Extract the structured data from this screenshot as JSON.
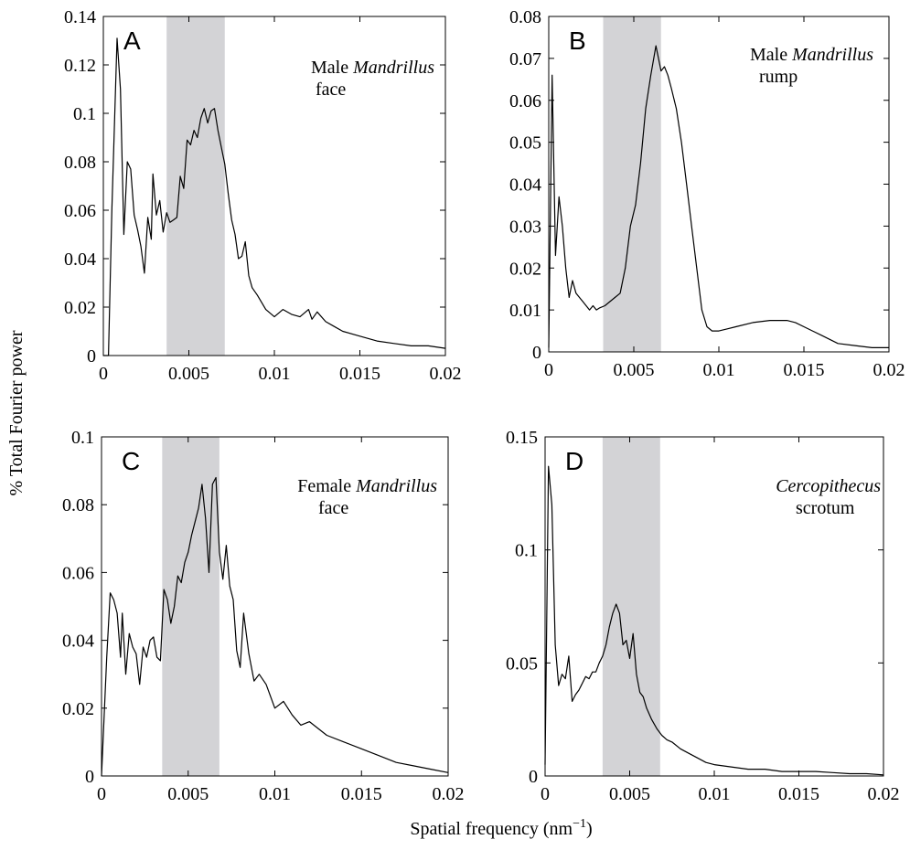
{
  "figure": {
    "ylabel": "%  Total Fourier power",
    "xlabel": "Spatial frequency (nm",
    "xlabel_exp": "−1",
    "xlabel_close": ")"
  },
  "chart_data": [
    {
      "type": "line",
      "panel": "A",
      "annotation": [
        {
          "text": "Male ",
          "italic": "Mandrillus"
        },
        {
          "text": "face"
        }
      ],
      "xlim": [
        0,
        0.02
      ],
      "ylim": [
        0,
        0.14
      ],
      "xticks": [
        0,
        0.005,
        0.01,
        0.015,
        0.02
      ],
      "xtick_labels": [
        "0",
        "0.005",
        "0.01",
        "0.015",
        "0.02"
      ],
      "yticks": [
        0,
        0.02,
        0.04,
        0.06,
        0.08,
        0.1,
        0.12,
        0.14
      ],
      "ytick_labels": [
        "0",
        "0.02",
        "0.04",
        "0.06",
        "0.08",
        "0.1",
        "0.12",
        "0.14"
      ],
      "shaded_band": [
        0.0037,
        0.0071
      ],
      "x": [
        0,
        0.0003,
        0.0005,
        0.0008,
        0.001,
        0.0012,
        0.0014,
        0.0016,
        0.0018,
        0.002,
        0.0022,
        0.0024,
        0.0026,
        0.0028,
        0.0029,
        0.0031,
        0.0033,
        0.0035,
        0.0037,
        0.0039,
        0.0041,
        0.0043,
        0.0045,
        0.0047,
        0.0049,
        0.0051,
        0.0053,
        0.0055,
        0.0057,
        0.0059,
        0.0061,
        0.0063,
        0.0065,
        0.0067,
        0.0069,
        0.0071,
        0.0073,
        0.0075,
        0.0077,
        0.0079,
        0.0081,
        0.0083,
        0.0085,
        0.0087,
        0.009,
        0.0095,
        0.01,
        0.0105,
        0.011,
        0.0115,
        0.012,
        0.0122,
        0.0125,
        0.013,
        0.0135,
        0.014,
        0.015,
        0.016,
        0.017,
        0.018,
        0.019,
        0.02
      ],
      "values": [
        0,
        0,
        0.06,
        0.131,
        0.11,
        0.05,
        0.08,
        0.077,
        0.058,
        0.052,
        0.045,
        0.034,
        0.057,
        0.048,
        0.075,
        0.058,
        0.064,
        0.051,
        0.059,
        0.055,
        0.056,
        0.057,
        0.074,
        0.069,
        0.089,
        0.087,
        0.093,
        0.09,
        0.098,
        0.102,
        0.096,
        0.101,
        0.102,
        0.093,
        0.086,
        0.079,
        0.067,
        0.056,
        0.05,
        0.04,
        0.041,
        0.047,
        0.033,
        0.028,
        0.025,
        0.019,
        0.016,
        0.019,
        0.017,
        0.016,
        0.019,
        0.015,
        0.018,
        0.014,
        0.012,
        0.01,
        0.008,
        0.006,
        0.005,
        0.004,
        0.004,
        0.003
      ]
    },
    {
      "type": "line",
      "panel": "B",
      "annotation": [
        {
          "text": "Male ",
          "italic": "Mandrillus"
        },
        {
          "text": "rump"
        }
      ],
      "xlim": [
        0,
        0.02
      ],
      "ylim": [
        0,
        0.08
      ],
      "xticks": [
        0,
        0.005,
        0.01,
        0.015,
        0.02
      ],
      "xtick_labels": [
        "0",
        "0.005",
        "0.01",
        "0.015",
        "0.02"
      ],
      "yticks": [
        0,
        0.01,
        0.02,
        0.03,
        0.04,
        0.05,
        0.06,
        0.07,
        0.08
      ],
      "ytick_labels": [
        "0",
        "0.01",
        "0.02",
        "0.03",
        "0.04",
        "0.05",
        "0.06",
        "0.07",
        "0.08"
      ],
      "shaded_band": [
        0.0032,
        0.0066
      ],
      "x": [
        0,
        0.0002,
        0.0004,
        0.0006,
        0.0008,
        0.001,
        0.0012,
        0.0014,
        0.0016,
        0.0018,
        0.002,
        0.0022,
        0.0024,
        0.0026,
        0.0028,
        0.003,
        0.0033,
        0.0036,
        0.0039,
        0.0042,
        0.0045,
        0.0048,
        0.0051,
        0.0054,
        0.0057,
        0.006,
        0.0063,
        0.0066,
        0.0068,
        0.007,
        0.0072,
        0.0075,
        0.0078,
        0.0081,
        0.0084,
        0.0087,
        0.009,
        0.0093,
        0.0096,
        0.01,
        0.0105,
        0.011,
        0.012,
        0.013,
        0.014,
        0.0145,
        0.015,
        0.016,
        0.017,
        0.018,
        0.019,
        0.02
      ],
      "values": [
        0.001,
        0.066,
        0.023,
        0.037,
        0.03,
        0.02,
        0.013,
        0.017,
        0.014,
        0.013,
        0.012,
        0.011,
        0.01,
        0.011,
        0.01,
        0.0105,
        0.011,
        0.012,
        0.013,
        0.014,
        0.02,
        0.03,
        0.035,
        0.045,
        0.058,
        0.066,
        0.073,
        0.067,
        0.068,
        0.066,
        0.063,
        0.058,
        0.05,
        0.04,
        0.03,
        0.02,
        0.01,
        0.006,
        0.005,
        0.005,
        0.0055,
        0.006,
        0.007,
        0.0075,
        0.0075,
        0.007,
        0.006,
        0.004,
        0.002,
        0.0015,
        0.001,
        0.001
      ]
    },
    {
      "type": "line",
      "panel": "C",
      "annotation": [
        {
          "text": "Female ",
          "italic": "Mandrillus"
        },
        {
          "text": "face"
        }
      ],
      "xlim": [
        0,
        0.02
      ],
      "ylim": [
        0,
        0.1
      ],
      "xticks": [
        0,
        0.005,
        0.01,
        0.015,
        0.02
      ],
      "xtick_labels": [
        "0",
        "0.005",
        "0.01",
        "0.015",
        "0.02"
      ],
      "yticks": [
        0,
        0.02,
        0.04,
        0.06,
        0.08,
        0.1
      ],
      "ytick_labels": [
        "0",
        "0.02",
        "0.04",
        "0.06",
        "0.08",
        "0.1"
      ],
      "shaded_band": [
        0.0035,
        0.0068
      ],
      "x": [
        0,
        0.0003,
        0.0005,
        0.0007,
        0.0009,
        0.0011,
        0.0012,
        0.0014,
        0.0016,
        0.0018,
        0.002,
        0.0022,
        0.0024,
        0.0026,
        0.0028,
        0.003,
        0.0032,
        0.0034,
        0.0036,
        0.0038,
        0.004,
        0.0042,
        0.0044,
        0.0046,
        0.0048,
        0.005,
        0.0052,
        0.0054,
        0.0056,
        0.0058,
        0.006,
        0.0062,
        0.0064,
        0.0066,
        0.0068,
        0.007,
        0.0072,
        0.0074,
        0.0076,
        0.0078,
        0.008,
        0.0082,
        0.0085,
        0.0088,
        0.0091,
        0.0095,
        0.01,
        0.0105,
        0.011,
        0.0115,
        0.012,
        0.013,
        0.014,
        0.015,
        0.016,
        0.017,
        0.018,
        0.019,
        0.02
      ],
      "values": [
        0,
        0.035,
        0.054,
        0.052,
        0.048,
        0.035,
        0.048,
        0.03,
        0.042,
        0.038,
        0.036,
        0.027,
        0.038,
        0.035,
        0.04,
        0.041,
        0.035,
        0.034,
        0.055,
        0.052,
        0.045,
        0.05,
        0.059,
        0.057,
        0.063,
        0.066,
        0.071,
        0.075,
        0.079,
        0.086,
        0.076,
        0.06,
        0.086,
        0.088,
        0.066,
        0.058,
        0.068,
        0.056,
        0.052,
        0.037,
        0.032,
        0.048,
        0.036,
        0.028,
        0.03,
        0.027,
        0.02,
        0.022,
        0.018,
        0.015,
        0.016,
        0.012,
        0.01,
        0.008,
        0.006,
        0.004,
        0.003,
        0.002,
        0.001
      ]
    },
    {
      "type": "line",
      "panel": "D",
      "annotation": [
        {
          "italic": "Cercopithecus"
        },
        {
          "text": "scrotum"
        }
      ],
      "xlim": [
        0,
        0.02
      ],
      "ylim": [
        0,
        0.15
      ],
      "xticks": [
        0,
        0.005,
        0.01,
        0.015,
        0.02
      ],
      "xtick_labels": [
        "0",
        "0.005",
        "0.01",
        "0.015",
        "0.02"
      ],
      "yticks": [
        0,
        0.05,
        0.1,
        0.15
      ],
      "ytick_labels": [
        "0",
        "0.05",
        "0.1",
        "0.15"
      ],
      "shaded_band": [
        0.0034,
        0.0068
      ],
      "x": [
        0,
        0.0002,
        0.0004,
        0.0006,
        0.0008,
        0.001,
        0.0012,
        0.0014,
        0.0016,
        0.0018,
        0.002,
        0.0022,
        0.0024,
        0.0026,
        0.0028,
        0.003,
        0.0032,
        0.0034,
        0.0036,
        0.0038,
        0.004,
        0.0042,
        0.0044,
        0.0046,
        0.0048,
        0.005,
        0.0052,
        0.0054,
        0.0056,
        0.0058,
        0.006,
        0.0063,
        0.0066,
        0.0069,
        0.0072,
        0.0075,
        0.008,
        0.0085,
        0.009,
        0.0095,
        0.01,
        0.011,
        0.012,
        0.013,
        0.014,
        0.015,
        0.016,
        0.017,
        0.018,
        0.019,
        0.02
      ],
      "values": [
        0.005,
        0.137,
        0.12,
        0.058,
        0.04,
        0.045,
        0.043,
        0.053,
        0.033,
        0.036,
        0.038,
        0.041,
        0.044,
        0.043,
        0.046,
        0.046,
        0.05,
        0.053,
        0.058,
        0.066,
        0.072,
        0.076,
        0.072,
        0.058,
        0.06,
        0.052,
        0.063,
        0.045,
        0.037,
        0.035,
        0.03,
        0.025,
        0.021,
        0.018,
        0.016,
        0.015,
        0.012,
        0.01,
        0.008,
        0.006,
        0.005,
        0.004,
        0.003,
        0.003,
        0.002,
        0.002,
        0.002,
        0.0015,
        0.001,
        0.001,
        0.0005
      ]
    }
  ]
}
